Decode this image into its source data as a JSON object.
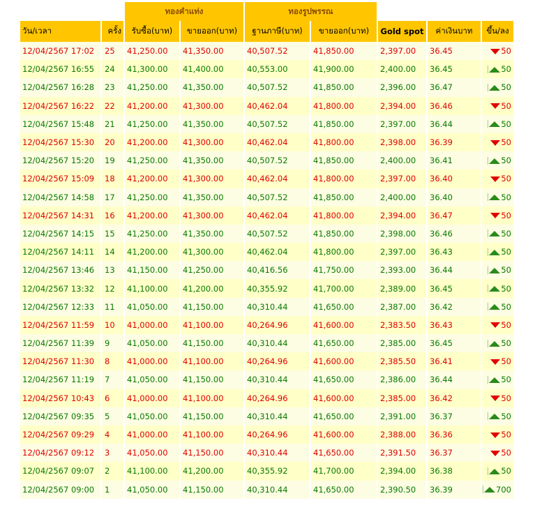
{
  "group_headers": {
    "bar": "ทองคำแท่ง",
    "ornament": "ทองรูปพรรณ"
  },
  "columns": {
    "date": "วัน/เวลา",
    "round": "ครั้ง",
    "bar_buy": "รับซื้อ(บาท)",
    "bar_sell": "ขายออก(บาท)",
    "orn_tax_base": "ฐานภาษี(บาท)",
    "orn_sell": "ขายออก(บาท)",
    "gold_spot": "Gold spot",
    "thb": "ค่าเงินบาท",
    "change": "ขึ้น/ลง"
  },
  "colors": {
    "header_bg": "#ffc600",
    "up": "#0a7a00",
    "down": "#e00000",
    "row_light": "#fdfde3",
    "row_dark": "#ffffc8"
  },
  "rows": [
    {
      "date": "12/04/2567 17:02",
      "round": "25",
      "bar_buy": "41,250.00",
      "bar_sell": "41,350.00",
      "orn_tax_base": "40,507.52",
      "orn_sell": "41,850.00",
      "gold_spot": "2,397.00",
      "thb": "36.45",
      "dir": "down",
      "change": "50"
    },
    {
      "date": "12/04/2567 16:55",
      "round": "24",
      "bar_buy": "41,300.00",
      "bar_sell": "41,400.00",
      "orn_tax_base": "40,553.00",
      "orn_sell": "41,900.00",
      "gold_spot": "2,400.00",
      "thb": "36.45",
      "dir": "up",
      "change": "50"
    },
    {
      "date": "12/04/2567 16:28",
      "round": "23",
      "bar_buy": "41,250.00",
      "bar_sell": "41,350.00",
      "orn_tax_base": "40,507.52",
      "orn_sell": "41,850.00",
      "gold_spot": "2,396.00",
      "thb": "36.47",
      "dir": "up",
      "change": "50"
    },
    {
      "date": "12/04/2567 16:22",
      "round": "22",
      "bar_buy": "41,200.00",
      "bar_sell": "41,300.00",
      "orn_tax_base": "40,462.04",
      "orn_sell": "41,800.00",
      "gold_spot": "2,394.00",
      "thb": "36.46",
      "dir": "down",
      "change": "50"
    },
    {
      "date": "12/04/2567 15:48",
      "round": "21",
      "bar_buy": "41,250.00",
      "bar_sell": "41,350.00",
      "orn_tax_base": "40,507.52",
      "orn_sell": "41,850.00",
      "gold_spot": "2,397.00",
      "thb": "36.44",
      "dir": "up",
      "change": "50"
    },
    {
      "date": "12/04/2567 15:30",
      "round": "20",
      "bar_buy": "41,200.00",
      "bar_sell": "41,300.00",
      "orn_tax_base": "40,462.04",
      "orn_sell": "41,800.00",
      "gold_spot": "2,398.00",
      "thb": "36.39",
      "dir": "down",
      "change": "50"
    },
    {
      "date": "12/04/2567 15:20",
      "round": "19",
      "bar_buy": "41,250.00",
      "bar_sell": "41,350.00",
      "orn_tax_base": "40,507.52",
      "orn_sell": "41,850.00",
      "gold_spot": "2,400.00",
      "thb": "36.41",
      "dir": "up",
      "change": "50"
    },
    {
      "date": "12/04/2567 15:09",
      "round": "18",
      "bar_buy": "41,200.00",
      "bar_sell": "41,300.00",
      "orn_tax_base": "40,462.04",
      "orn_sell": "41,800.00",
      "gold_spot": "2,397.00",
      "thb": "36.40",
      "dir": "down",
      "change": "50"
    },
    {
      "date": "12/04/2567 14:58",
      "round": "17",
      "bar_buy": "41,250.00",
      "bar_sell": "41,350.00",
      "orn_tax_base": "40,507.52",
      "orn_sell": "41,850.00",
      "gold_spot": "2,400.00",
      "thb": "36.40",
      "dir": "up",
      "change": "50"
    },
    {
      "date": "12/04/2567 14:31",
      "round": "16",
      "bar_buy": "41,200.00",
      "bar_sell": "41,300.00",
      "orn_tax_base": "40,462.04",
      "orn_sell": "41,800.00",
      "gold_spot": "2,394.00",
      "thb": "36.47",
      "dir": "down",
      "change": "50"
    },
    {
      "date": "12/04/2567 14:15",
      "round": "15",
      "bar_buy": "41,250.00",
      "bar_sell": "41,350.00",
      "orn_tax_base": "40,507.52",
      "orn_sell": "41,850.00",
      "gold_spot": "2,398.00",
      "thb": "36.46",
      "dir": "up",
      "change": "50"
    },
    {
      "date": "12/04/2567 14:11",
      "round": "14",
      "bar_buy": "41,200.00",
      "bar_sell": "41,300.00",
      "orn_tax_base": "40,462.04",
      "orn_sell": "41,800.00",
      "gold_spot": "2,397.00",
      "thb": "36.43",
      "dir": "up",
      "change": "50"
    },
    {
      "date": "12/04/2567 13:46",
      "round": "13",
      "bar_buy": "41,150.00",
      "bar_sell": "41,250.00",
      "orn_tax_base": "40,416.56",
      "orn_sell": "41,750.00",
      "gold_spot": "2,393.00",
      "thb": "36.44",
      "dir": "up",
      "change": "50"
    },
    {
      "date": "12/04/2567 13:32",
      "round": "12",
      "bar_buy": "41,100.00",
      "bar_sell": "41,200.00",
      "orn_tax_base": "40,355.92",
      "orn_sell": "41,700.00",
      "gold_spot": "2,389.00",
      "thb": "36.45",
      "dir": "up",
      "change": "50"
    },
    {
      "date": "12/04/2567 12:33",
      "round": "11",
      "bar_buy": "41,050.00",
      "bar_sell": "41,150.00",
      "orn_tax_base": "40,310.44",
      "orn_sell": "41,650.00",
      "gold_spot": "2,387.00",
      "thb": "36.42",
      "dir": "up",
      "change": "50"
    },
    {
      "date": "12/04/2567 11:59",
      "round": "10",
      "bar_buy": "41,000.00",
      "bar_sell": "41,100.00",
      "orn_tax_base": "40,264.96",
      "orn_sell": "41,600.00",
      "gold_spot": "2,383.50",
      "thb": "36.43",
      "dir": "down",
      "change": "50"
    },
    {
      "date": "12/04/2567 11:39",
      "round": "9",
      "bar_buy": "41,050.00",
      "bar_sell": "41,150.00",
      "orn_tax_base": "40,310.44",
      "orn_sell": "41,650.00",
      "gold_spot": "2,385.00",
      "thb": "36.45",
      "dir": "up",
      "change": "50"
    },
    {
      "date": "12/04/2567 11:30",
      "round": "8",
      "bar_buy": "41,000.00",
      "bar_sell": "41,100.00",
      "orn_tax_base": "40,264.96",
      "orn_sell": "41,600.00",
      "gold_spot": "2,385.50",
      "thb": "36.41",
      "dir": "down",
      "change": "50"
    },
    {
      "date": "12/04/2567 11:19",
      "round": "7",
      "bar_buy": "41,050.00",
      "bar_sell": "41,150.00",
      "orn_tax_base": "40,310.44",
      "orn_sell": "41,650.00",
      "gold_spot": "2,386.00",
      "thb": "36.44",
      "dir": "up",
      "change": "50"
    },
    {
      "date": "12/04/2567 10:43",
      "round": "6",
      "bar_buy": "41,000.00",
      "bar_sell": "41,100.00",
      "orn_tax_base": "40,264.96",
      "orn_sell": "41,600.00",
      "gold_spot": "2,385.00",
      "thb": "36.42",
      "dir": "down",
      "change": "50"
    },
    {
      "date": "12/04/2567 09:35",
      "round": "5",
      "bar_buy": "41,050.00",
      "bar_sell": "41,150.00",
      "orn_tax_base": "40,310.44",
      "orn_sell": "41,650.00",
      "gold_spot": "2,391.00",
      "thb": "36.37",
      "dir": "up",
      "change": "50"
    },
    {
      "date": "12/04/2567 09:29",
      "round": "4",
      "bar_buy": "41,000.00",
      "bar_sell": "41,100.00",
      "orn_tax_base": "40,264.96",
      "orn_sell": "41,600.00",
      "gold_spot": "2,388.00",
      "thb": "36.36",
      "dir": "down",
      "change": "50"
    },
    {
      "date": "12/04/2567 09:12",
      "round": "3",
      "bar_buy": "41,050.00",
      "bar_sell": "41,150.00",
      "orn_tax_base": "40,310.44",
      "orn_sell": "41,650.00",
      "gold_spot": "2,391.50",
      "thb": "36.37",
      "dir": "down",
      "change": "50"
    },
    {
      "date": "12/04/2567 09:07",
      "round": "2",
      "bar_buy": "41,100.00",
      "bar_sell": "41,200.00",
      "orn_tax_base": "40,355.92",
      "orn_sell": "41,700.00",
      "gold_spot": "2,394.00",
      "thb": "36.38",
      "dir": "up",
      "change": "50"
    },
    {
      "date": "12/04/2567 09:00",
      "round": "1",
      "bar_buy": "41,050.00",
      "bar_sell": "41,150.00",
      "orn_tax_base": "40,310.44",
      "orn_sell": "41,650.00",
      "gold_spot": "2,390.50",
      "thb": "36.39",
      "dir": "up",
      "change": "700"
    }
  ]
}
